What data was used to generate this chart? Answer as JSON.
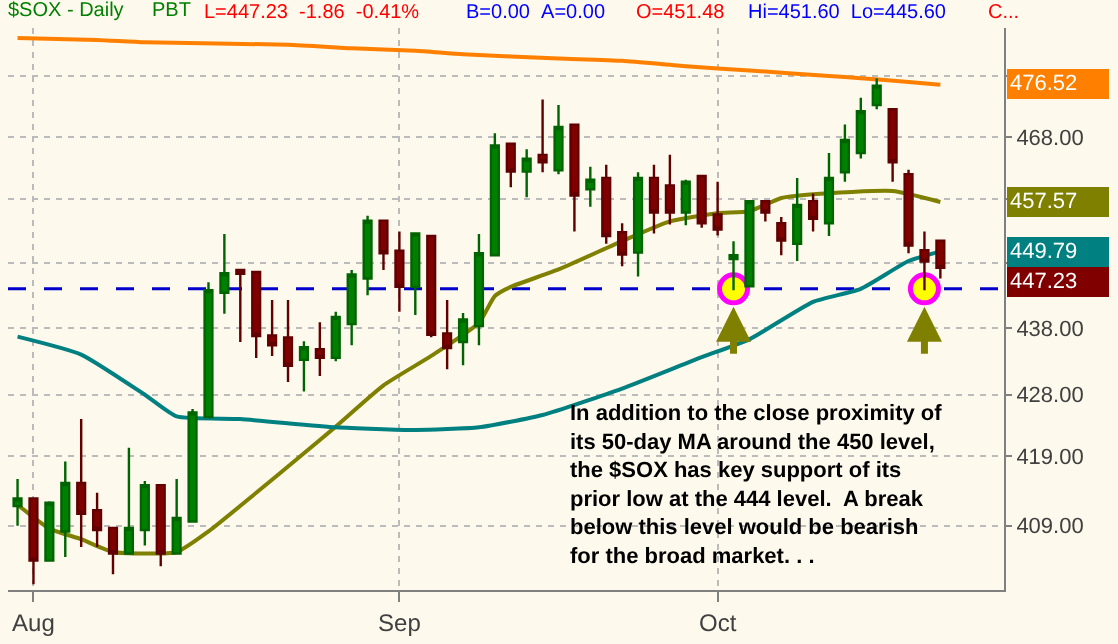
{
  "chart_data": {
    "type": "candlestick",
    "title": "$SOX - Daily",
    "subtitle": "PBT",
    "annotations": [
      "L=447.23 -1.86 -0.41%",
      "B=0.00 A=0.00",
      "O=451.48",
      "Hi=451.60 Lo=445.60",
      "C...",
      "476.52",
      "457.57",
      "449.79",
      "447.23",
      "In addition to the close proximity of\nits 50-day MA around the 450 level,\nthe $SOX has key support of its\nprior low at the 444 level.  A break\nbelow this level would be bearish\nfor the broad market. . ."
    ],
    "categories": [
      null,
      "Aug",
      null,
      null,
      null,
      null,
      null,
      null,
      null,
      null,
      null,
      null,
      null,
      null,
      null,
      null,
      null,
      null,
      null,
      null,
      null,
      null,
      null,
      null,
      "Sep",
      null,
      null,
      null,
      null,
      null,
      null,
      null,
      null,
      null,
      null,
      null,
      null,
      null,
      null,
      null,
      null,
      null,
      null,
      null,
      "Oct",
      null,
      null,
      null,
      null,
      null,
      null,
      null,
      null,
      null,
      null,
      null,
      null,
      null,
      null
    ],
    "ohlc": [
      [
        411.8,
        415.7,
        409.0,
        412.9
      ],
      [
        412.9,
        412.9,
        400.8,
        404.1
      ],
      [
        404.1,
        412.5,
        404.0,
        412.3
      ],
      [
        408.2,
        418.2,
        404.6,
        415.1
      ],
      [
        415.1,
        424.4,
        406.0,
        410.7
      ],
      [
        411.2,
        413.7,
        406.0,
        408.4
      ],
      [
        408.7,
        408.7,
        402.2,
        405.1
      ],
      [
        405.1,
        420.2,
        405.1,
        408.7
      ],
      [
        408.4,
        415.4,
        406.2,
        414.8
      ],
      [
        414.8,
        414.8,
        403.3,
        405.1
      ],
      [
        405.1,
        415.7,
        405.0,
        410.1
      ],
      [
        409.6,
        425.9,
        409.6,
        425.4
      ],
      [
        424.7,
        445.0,
        424.7,
        443.8
      ],
      [
        443.4,
        452.5,
        440.2,
        446.4
      ],
      [
        446.9,
        447.0,
        435.9,
        446.3
      ],
      [
        446.6,
        446.6,
        433.5,
        436.8
      ],
      [
        436.9,
        442.3,
        433.8,
        435.4
      ],
      [
        436.6,
        442.3,
        429.9,
        432.3
      ],
      [
        433.2,
        436.0,
        428.5,
        435.1
      ],
      [
        434.8,
        438.9,
        430.8,
        433.5
      ],
      [
        433.5,
        440.5,
        433.0,
        439.7
      ],
      [
        438.6,
        446.9,
        435.4,
        446.2
      ],
      [
        445.6,
        455.4,
        443.0,
        454.6
      ],
      [
        454.6,
        454.6,
        446.9,
        449.5
      ],
      [
        449.9,
        452.9,
        440.5,
        444.3
      ],
      [
        444.3,
        452.6,
        440.0,
        452.6
      ],
      [
        452.2,
        452.2,
        436.6,
        437.0
      ],
      [
        437.2,
        442.3,
        431.8,
        435.0
      ],
      [
        435.9,
        440.3,
        432.4,
        439.3
      ],
      [
        438.3,
        452.5,
        435.4,
        449.5
      ],
      [
        449.2,
        468.6,
        449.2,
        466.6
      ],
      [
        466.9,
        466.9,
        459.9,
        462.4
      ],
      [
        462.4,
        466.0,
        458.3,
        464.5
      ],
      [
        465.1,
        474.1,
        462.3,
        463.9
      ],
      [
        462.6,
        473.2,
        462.0,
        469.6
      ],
      [
        470.0,
        470.0,
        452.9,
        458.6
      ],
      [
        459.6,
        463.2,
        456.8,
        461.1
      ],
      [
        461.4,
        463.5,
        451.0,
        452.2
      ],
      [
        452.8,
        454.2,
        447.5,
        449.3
      ],
      [
        449.6,
        462.3,
        445.9,
        461.4
      ],
      [
        461.4,
        463.5,
        452.6,
        455.9
      ],
      [
        460.2,
        465.1,
        454.0,
        455.9
      ],
      [
        455.9,
        461.1,
        453.9,
        460.8
      ],
      [
        461.7,
        461.7,
        453.5,
        454.2
      ],
      [
        455.6,
        460.8,
        452.3,
        453.2
      ],
      [
        448.6,
        451.4,
        443.8,
        449.2
      ],
      [
        444.4,
        457.9,
        444.4,
        457.7
      ],
      [
        457.7,
        457.9,
        454.5,
        455.9
      ],
      [
        454.2,
        455.2,
        449.2,
        451.5
      ],
      [
        451.0,
        461.4,
        448.3,
        457.1
      ],
      [
        457.7,
        458.9,
        452.9,
        454.9
      ],
      [
        454.2,
        465.4,
        452.2,
        461.4
      ],
      [
        462.3,
        470.0,
        460.8,
        467.5
      ],
      [
        465.4,
        474.4,
        464.5,
        472.2
      ],
      [
        473.2,
        477.6,
        472.5,
        476.4
      ],
      [
        472.5,
        472.5,
        460.8,
        463.9
      ],
      [
        462.0,
        462.7,
        449.5,
        450.7
      ],
      [
        450.0,
        452.9,
        443.8,
        448.2
      ],
      [
        451.48,
        451.6,
        445.6,
        447.23
      ]
    ],
    "series": [
      {
        "type": "line",
        "color": "#ff8000",
        "values": [
          484.3,
          null,
          null,
          null,
          null,
          484.0,
          null,
          null,
          483.6,
          null,
          null,
          null,
          null,
          null,
          null,
          null,
          null,
          483.2,
          null,
          null,
          null,
          482.6,
          null,
          null,
          null,
          482.2,
          null,
          null,
          481.6,
          null,
          null,
          null,
          null,
          null,
          480.9,
          null,
          null,
          null,
          480.5,
          null,
          null,
          null,
          479.6,
          null,
          null,
          null,
          478.9,
          null,
          null,
          null,
          null,
          478.0,
          null,
          477.6,
          null,
          null,
          477.0,
          null,
          476.52
        ]
      },
      {
        "type": "line",
        "color": "#808000",
        "values": [
          412.0,
          null,
          408.6,
          null,
          407.1,
          null,
          405.3,
          null,
          null,
          null,
          405.3,
          null,
          408.2,
          null,
          null,
          413.7,
          null,
          null,
          419.4,
          null,
          423.3,
          null,
          null,
          429.4,
          null,
          null,
          433.8,
          null,
          null,
          438.8,
          442.9,
          444.3,
          null,
          null,
          447.0,
          null,
          null,
          null,
          451.4,
          null,
          null,
          454.5,
          null,
          null,
          455.8,
          null,
          456.1,
          null,
          458.2,
          null,
          458.8,
          null,
          null,
          null,
          null,
          459.3,
          null,
          null,
          457.57
        ]
      },
      {
        "type": "line",
        "color": "#008080",
        "values": [
          436.7,
          null,
          null,
          null,
          434.0,
          null,
          null,
          null,
          428.0,
          null,
          424.8,
          null,
          null,
          null,
          424.4,
          null,
          null,
          null,
          null,
          null,
          423.2,
          null,
          null,
          null,
          null,
          422.8,
          null,
          null,
          null,
          423.2,
          null,
          null,
          null,
          425.0,
          null,
          null,
          null,
          null,
          428.9,
          null,
          null,
          null,
          null,
          433.6,
          null,
          null,
          436.3,
          null,
          null,
          null,
          442.0,
          null,
          null,
          444.0,
          null,
          null,
          448.3,
          null,
          449.79
        ]
      },
      {
        "type": "scatter",
        "color": "#ffff00",
        "marker": "circle",
        "values": [
          null,
          null,
          null,
          null,
          null,
          null,
          null,
          null,
          null,
          null,
          null,
          null,
          null,
          null,
          null,
          null,
          null,
          null,
          null,
          null,
          null,
          null,
          null,
          null,
          null,
          null,
          null,
          null,
          null,
          null,
          null,
          null,
          null,
          null,
          null,
          null,
          null,
          null,
          null,
          null,
          null,
          null,
          null,
          null,
          null,
          444,
          null,
          null,
          null,
          null,
          null,
          null,
          null,
          null,
          null,
          null,
          null,
          444,
          null
        ]
      }
    ],
    "ref_lines": [
      {
        "axis": "y",
        "value": 444,
        "color": "#0000cc",
        "line_style": "dashed"
      }
    ],
    "log": true,
    "grid": true,
    "ylim": [
      400,
      486
    ],
    "yticks": [
      {
        "value": 409,
        "label": "409.00"
      },
      {
        "value": 419,
        "label": "419.00"
      },
      {
        "value": 428,
        "label": "428.00"
      },
      {
        "value": 438,
        "label": "438.00"
      },
      {
        "value": 448,
        "label": null
      },
      {
        "value": 458,
        "label": null
      },
      {
        "value": 468,
        "label": "468.00"
      },
      {
        "value": 478,
        "label": null
      }
    ]
  }
}
